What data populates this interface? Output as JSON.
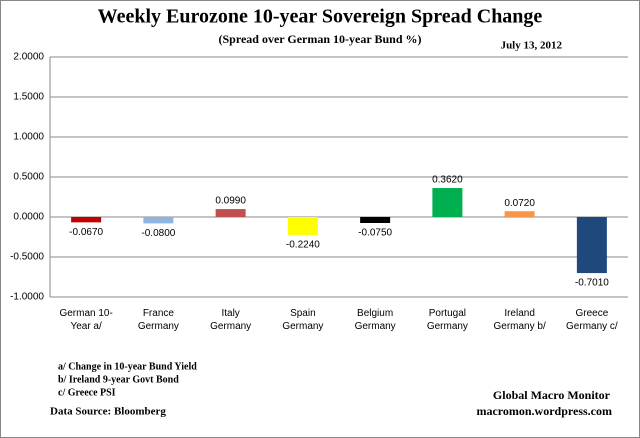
{
  "chart_data": {
    "type": "bar",
    "title": "Weekly Eurozone 10-year Sovereign Spread Change",
    "subtitle": "(Spread over German 10-year Bund  %)",
    "date": "July 13, 2012",
    "categories": [
      "German 10-\nYear a/",
      "France\nGermany",
      "Italy\nGermany",
      "Spain\nGermany",
      "Belgium\nGermany",
      "Portugal\nGermany",
      "Ireland\nGermany b/",
      "Greece\nGermany c/"
    ],
    "values": [
      -0.067,
      -0.08,
      0.099,
      -0.224,
      -0.075,
      0.362,
      0.072,
      -0.701
    ],
    "value_labels": [
      "-0.0670",
      "-0.0800",
      "0.0990",
      "-0.2240",
      "-0.0750",
      "0.3620",
      "0.0720",
      "-0.7010"
    ],
    "colors": [
      "#c00000",
      "#8eb4e3",
      "#c0504d",
      "#ffff00",
      "#000000",
      "#00b050",
      "#f79646",
      "#1f497d"
    ],
    "ylim": [
      -1,
      2
    ],
    "yticks": [
      {
        "value": -1,
        "label": "-1.0000"
      },
      {
        "value": -0.5,
        "label": "-0.5000"
      },
      {
        "value": 0,
        "label": "0.0000"
      },
      {
        "value": 0.5,
        "label": "0.5000"
      },
      {
        "value": 1,
        "label": "1.0000"
      },
      {
        "value": 1.5,
        "label": "1.5000"
      },
      {
        "value": 2,
        "label": "2.0000"
      }
    ],
    "grid": true,
    "footnotes": [
      "a/ Change in 10-year Bund Yield",
      "b/ Ireland 9-year Govt Bond",
      "c/ Greece PSI"
    ],
    "source": "Data Source:  Bloomberg",
    "credit": [
      "Global Macro Monitor",
      "macromon.wordpress.com"
    ]
  }
}
